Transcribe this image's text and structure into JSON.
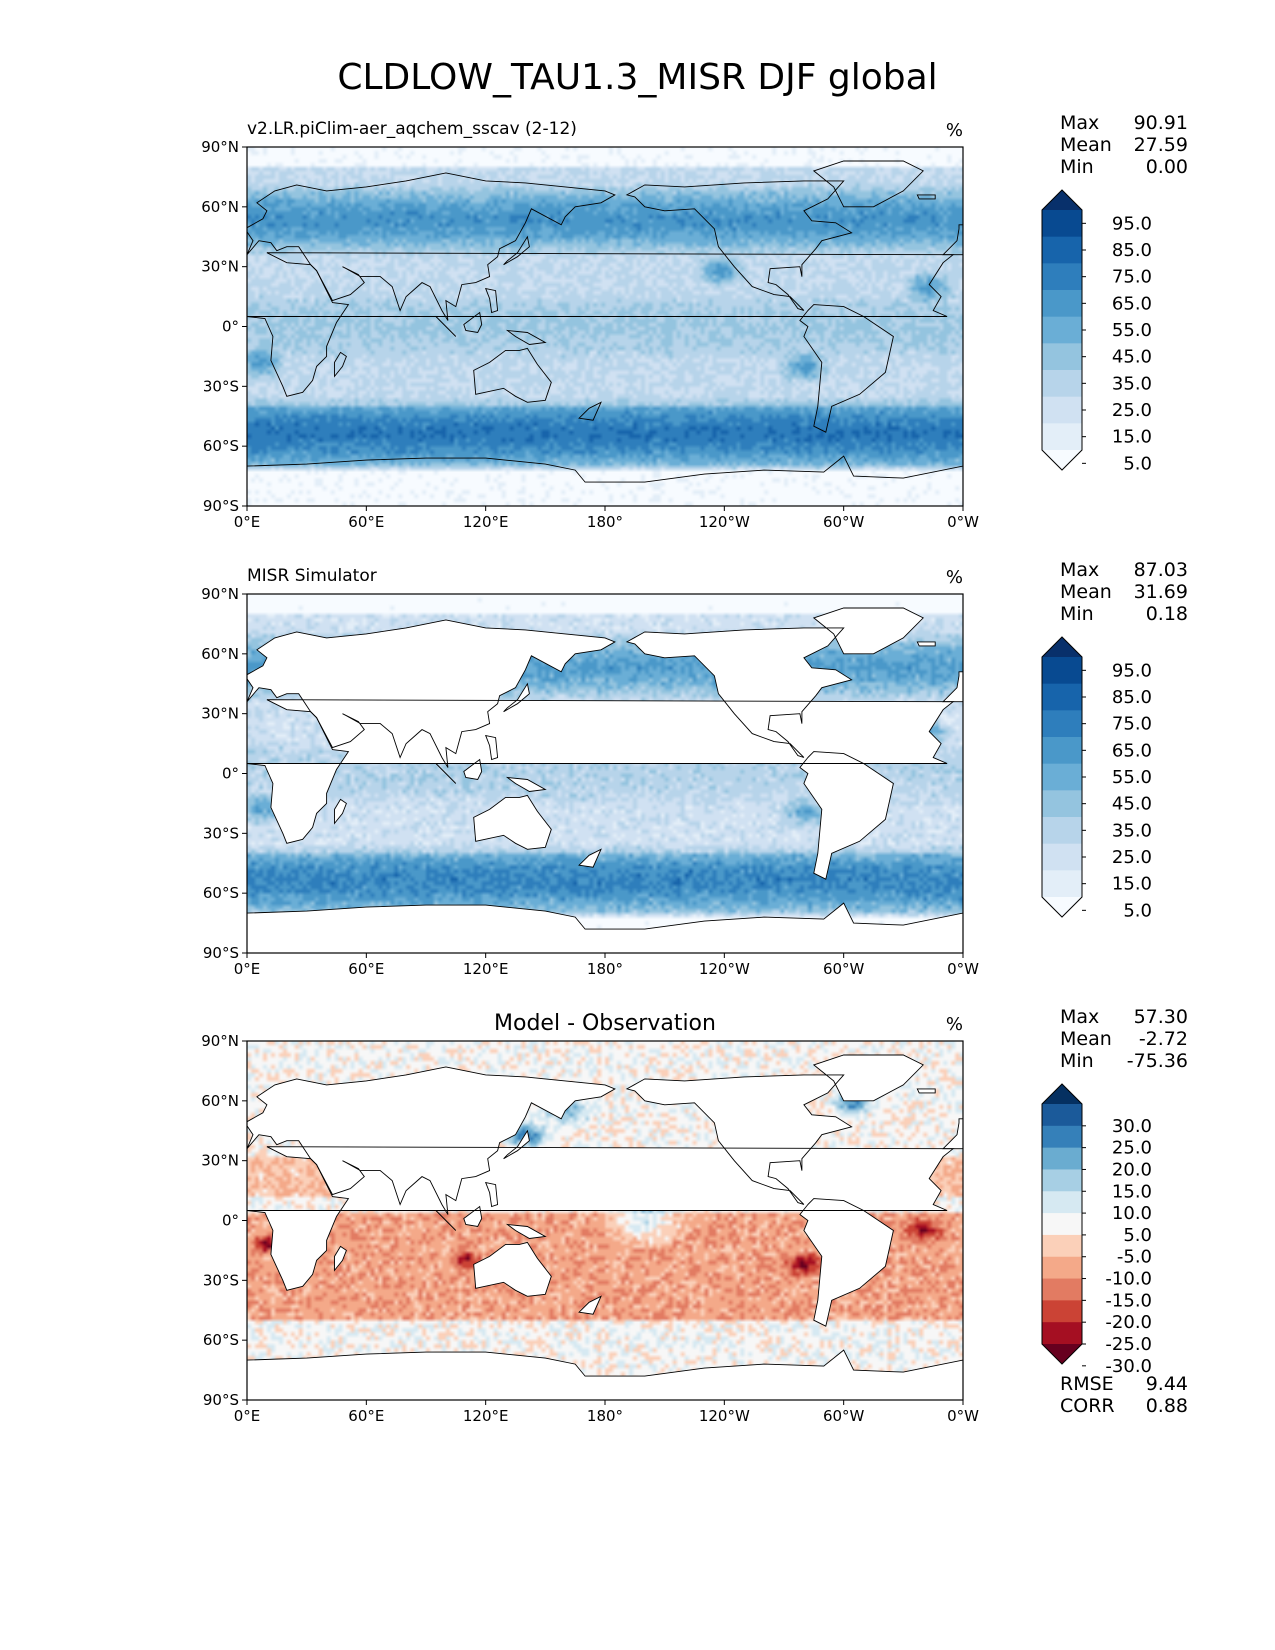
{
  "figure": {
    "title": "CLDLOW_TAU1.3_MISR DJF global"
  },
  "lon_tick_labels": [
    "0°E",
    "60°E",
    "120°E",
    "180°",
    "120°W",
    "60°W",
    "0°W"
  ],
  "lat_tick_labels": [
    "90°N",
    "60°N",
    "30°N",
    "0°",
    "30°S",
    "60°S",
    "90°S"
  ],
  "colors": {
    "blues": [
      "#f7fbff",
      "#e3eef8",
      "#d0e1f2",
      "#b7d4ea",
      "#94c4df",
      "#6aaed6",
      "#4a98c9",
      "#2e7ebc",
      "#1764ab",
      "#084a91",
      "#08306b"
    ],
    "diff": [
      "#67001f",
      "#a50f22",
      "#cb4335",
      "#e27b62",
      "#f4a989",
      "#fbd0b9",
      "#f7f7f7",
      "#d6e9f2",
      "#a7cfe4",
      "#6aacd0",
      "#3580b9",
      "#1b5a9a",
      "#053061"
    ],
    "land": "#ffffff",
    "coast": "#000000"
  },
  "chart_data": [
    {
      "type": "heatmap",
      "panel": "test",
      "title_left": "v2.LR.piClim-aer_aqchem_sscav (2-12)",
      "title_center": "",
      "units": "%",
      "stats": {
        "labels": [
          "Max",
          "Mean",
          "Min"
        ],
        "values": [
          "90.91",
          "27.59",
          "0.00"
        ]
      },
      "colorbar": {
        "levels": [
          "95.0",
          "85.0",
          "75.0",
          "65.0",
          "55.0",
          "45.0",
          "35.0",
          "25.0",
          "15.0",
          "5.0"
        ],
        "extend": "both"
      },
      "xlim": [
        0,
        360
      ],
      "ylim": [
        -90,
        90
      ],
      "masked_over_land": false
    },
    {
      "type": "heatmap",
      "panel": "reference",
      "title_left": "MISR Simulator",
      "title_center": "",
      "units": "%",
      "stats": {
        "labels": [
          "Max",
          "Mean",
          "Min"
        ],
        "values": [
          "87.03",
          "31.69",
          "0.18"
        ]
      },
      "colorbar": {
        "levels": [
          "95.0",
          "85.0",
          "75.0",
          "65.0",
          "55.0",
          "45.0",
          "35.0",
          "25.0",
          "15.0",
          "5.0"
        ],
        "extend": "both"
      },
      "xlim": [
        0,
        360
      ],
      "ylim": [
        -90,
        90
      ],
      "masked_over_land": true
    },
    {
      "type": "heatmap",
      "panel": "difference",
      "title_left": "",
      "title_center": "Model - Observation",
      "units": "%",
      "stats": {
        "labels": [
          "Max",
          "Mean",
          "Min"
        ],
        "values": [
          "57.30",
          "-2.72",
          "-75.36"
        ]
      },
      "extra_stats": {
        "labels": [
          "RMSE",
          "CORR"
        ],
        "values": [
          "9.44",
          "0.88"
        ]
      },
      "colorbar": {
        "levels": [
          "30.0",
          "25.0",
          "20.0",
          "15.0",
          "10.0",
          "5.0",
          "-5.0",
          "-10.0",
          "-15.0",
          "-20.0",
          "-25.0",
          "-30.0"
        ],
        "extend": "both"
      },
      "xlim": [
        0,
        360
      ],
      "ylim": [
        -90,
        90
      ],
      "masked_over_land": true
    }
  ]
}
